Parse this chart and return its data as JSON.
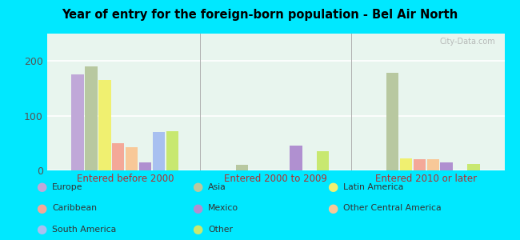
{
  "title": "Year of entry for the foreign-born population - Bel Air North",
  "groups": [
    "Entered before 2000",
    "Entered 2000 to 2009",
    "Entered 2010 or later"
  ],
  "series": {
    "Europe": {
      "color": "#c0a8d8",
      "values": [
        175,
        0,
        0
      ]
    },
    "Asia": {
      "color": "#b8c8a0",
      "values": [
        190,
        10,
        178
      ]
    },
    "Latin America": {
      "color": "#f0f070",
      "values": [
        165,
        0,
        22
      ]
    },
    "Caribbean": {
      "color": "#f4a898",
      "values": [
        50,
        0,
        20
      ]
    },
    "Other Central America": {
      "color": "#f8c898",
      "values": [
        43,
        0,
        20
      ]
    },
    "Mexico": {
      "color": "#b090d0",
      "values": [
        15,
        45,
        15
      ]
    },
    "South America": {
      "color": "#a8c0f0",
      "values": [
        70,
        0,
        0
      ]
    },
    "Other": {
      "color": "#c8e870",
      "values": [
        72,
        35,
        12
      ]
    }
  },
  "bar_order": [
    "Europe",
    "Asia",
    "Latin America",
    "Caribbean",
    "Other Central America",
    "Mexico",
    "South America",
    "Other"
  ],
  "ylim": [
    0,
    250
  ],
  "yticks": [
    0,
    100,
    200
  ],
  "background_color": "#e8f5ee",
  "figure_bg": "#00e8ff",
  "grid_color": "#ffffff",
  "xlabel_color": "#b03030",
  "title_color": "#000000",
  "watermark": "City-Data.com",
  "legend_cols": [
    [
      [
        "Europe",
        "#c0a8d8"
      ],
      [
        "Caribbean",
        "#f4a898"
      ],
      [
        "South America",
        "#a8c0f0"
      ]
    ],
    [
      [
        "Asia",
        "#b8c8a0"
      ],
      [
        "Mexico",
        "#b090d0"
      ],
      [
        "Other",
        "#c8e870"
      ]
    ],
    [
      [
        "Latin America",
        "#f0f070"
      ],
      [
        "Other Central America",
        "#f8c898"
      ]
    ]
  ]
}
